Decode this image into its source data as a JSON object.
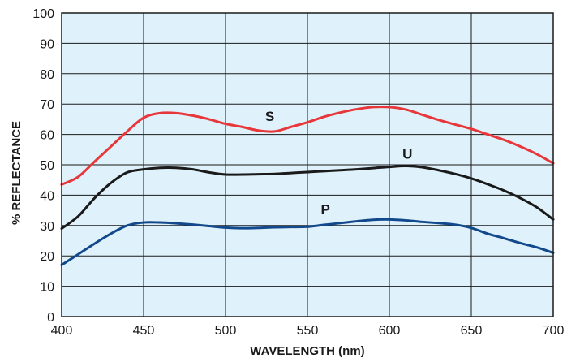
{
  "chart_data": {
    "type": "line",
    "title": "",
    "xlabel": "WAVELENGTH (nm)",
    "ylabel": "% REFLECTANCE",
    "xlim": [
      400,
      700
    ],
    "ylim": [
      0,
      100
    ],
    "x_ticks": [
      400,
      450,
      500,
      550,
      600,
      650,
      700
    ],
    "y_ticks": [
      0,
      10,
      20,
      30,
      40,
      50,
      60,
      70,
      80,
      90,
      100
    ],
    "grid": true,
    "background_color": "#dff2fb",
    "series": [
      {
        "name": "S",
        "color": "#e8373a",
        "x": [
          400,
          410,
          420,
          430,
          440,
          450,
          460,
          470,
          480,
          490,
          500,
          510,
          520,
          530,
          540,
          550,
          560,
          570,
          580,
          590,
          600,
          610,
          620,
          630,
          640,
          650,
          660,
          670,
          680,
          690,
          700
        ],
        "y": [
          43.5,
          46,
          51,
          56,
          61,
          65.5,
          67,
          67,
          66.2,
          65,
          63.5,
          62.5,
          61.3,
          61,
          62.5,
          64,
          65.8,
          67.2,
          68.3,
          69,
          69,
          68.2,
          66.5,
          64.8,
          63.3,
          61.8,
          60,
          58.2,
          56,
          53.5,
          50.5
        ],
        "label_at": [
          530,
          63.5
        ]
      },
      {
        "name": "U",
        "color": "#1a1a1a",
        "x": [
          400,
          410,
          420,
          430,
          440,
          450,
          460,
          470,
          480,
          490,
          500,
          510,
          520,
          530,
          540,
          550,
          560,
          570,
          580,
          590,
          600,
          610,
          620,
          630,
          640,
          650,
          660,
          670,
          680,
          690,
          700
        ],
        "y": [
          29,
          33,
          39,
          44,
          47.5,
          48.5,
          49,
          49,
          48.5,
          47.5,
          46.8,
          46.8,
          46.9,
          47,
          47.3,
          47.6,
          47.9,
          48.2,
          48.5,
          48.9,
          49.3,
          49.6,
          49.2,
          48.2,
          47,
          45.5,
          43.6,
          41.5,
          39,
          36,
          32
        ],
        "label_at": [
          610,
          51.5
        ]
      },
      {
        "name": "P",
        "color": "#12498c",
        "x": [
          400,
          410,
          420,
          430,
          440,
          450,
          460,
          470,
          480,
          490,
          500,
          510,
          520,
          530,
          540,
          550,
          560,
          570,
          580,
          590,
          600,
          610,
          620,
          630,
          640,
          650,
          660,
          670,
          680,
          690,
          700
        ],
        "y": [
          17,
          20.5,
          24,
          27.3,
          30,
          31,
          31,
          30.7,
          30.3,
          29.8,
          29.3,
          29.1,
          29.2,
          29.4,
          29.5,
          29.6,
          30.2,
          30.8,
          31.4,
          31.9,
          32,
          31.7,
          31.2,
          30.8,
          30.3,
          29.2,
          27.3,
          25.8,
          24.2,
          22.8,
          21
        ]
      }
    ],
    "series_labels": [
      {
        "text": "S",
        "x": 527,
        "y": 64.5
      },
      {
        "text": "U",
        "x": 611,
        "y": 52
      },
      {
        "text": "P",
        "x": 561,
        "y": 33.8
      }
    ]
  }
}
